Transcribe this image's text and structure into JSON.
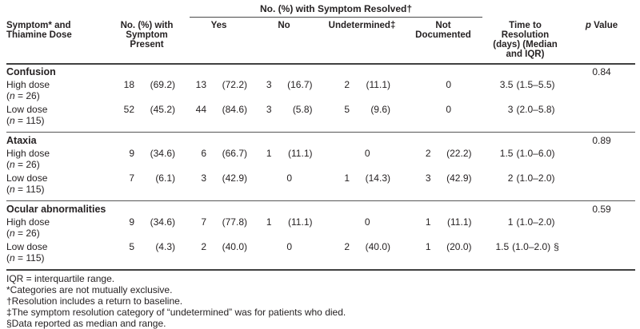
{
  "header": {
    "spanner": "No. (%) with Symptom Resolved†",
    "col_symptom": [
      "Symptom* and",
      "Thiamine Dose"
    ],
    "col_present": [
      "No. (%) with",
      "Symptom",
      "Present"
    ],
    "col_yes": "Yes",
    "col_no": "No",
    "col_undetermined": "Undetermined‡",
    "col_notdoc": [
      "Not",
      "Documented"
    ],
    "col_time": [
      "Time to",
      "Resolution",
      "(days) (Median",
      "and IQR)"
    ],
    "col_p_italic": "p",
    "col_p_rest": " Value"
  },
  "sections": [
    {
      "name": "Confusion",
      "p": "0.84",
      "rows": [
        {
          "dose": "High dose",
          "n_open": "(",
          "n_sym": "n",
          "n_rest": " = 26)",
          "present": {
            "n": "18",
            "pct": "(69.2)"
          },
          "yes": {
            "n": "13",
            "pct": "(72.2)"
          },
          "no": {
            "n": "3",
            "pct": "(16.7)"
          },
          "undetermined": {
            "n": "2",
            "pct": "(11.1)"
          },
          "notdoc": {
            "n": "0",
            "pct": ""
          },
          "time": {
            "n": "3.5",
            "range": "(1.5–5.5)",
            "suffix": ""
          }
        },
        {
          "dose": "Low dose",
          "n_open": "(",
          "n_sym": "n",
          "n_rest": " = 115)",
          "present": {
            "n": "52",
            "pct": "(45.2)"
          },
          "yes": {
            "n": "44",
            "pct": "(84.6)"
          },
          "no": {
            "n": "3",
            "pct": "(5.8)"
          },
          "undetermined": {
            "n": "5",
            "pct": "(9.6)"
          },
          "notdoc": {
            "n": "0",
            "pct": ""
          },
          "time": {
            "n": "3",
            "range": "(2.0–5.8)",
            "suffix": ""
          }
        }
      ]
    },
    {
      "name": "Ataxia",
      "p": "0.89",
      "rows": [
        {
          "dose": "High dose",
          "n_open": "(",
          "n_sym": "n",
          "n_rest": " = 26)",
          "present": {
            "n": "9",
            "pct": "(34.6)"
          },
          "yes": {
            "n": "6",
            "pct": "(66.7)"
          },
          "no": {
            "n": "1",
            "pct": "(11.1)"
          },
          "undetermined": {
            "n": "0",
            "pct": ""
          },
          "notdoc": {
            "n": "2",
            "pct": "(22.2)"
          },
          "time": {
            "n": "1.5",
            "range": "(1.0–6.0)",
            "suffix": ""
          }
        },
        {
          "dose": "Low dose",
          "n_open": "(",
          "n_sym": "n",
          "n_rest": " = 115)",
          "present": {
            "n": "7",
            "pct": "(6.1)"
          },
          "yes": {
            "n": "3",
            "pct": "(42.9)"
          },
          "no": {
            "n": "0",
            "pct": ""
          },
          "undetermined": {
            "n": "1",
            "pct": "(14.3)"
          },
          "notdoc": {
            "n": "3",
            "pct": "(42.9)"
          },
          "time": {
            "n": "2",
            "range": "(1.0–2.0)",
            "suffix": ""
          }
        }
      ]
    },
    {
      "name": "Ocular abnormalities",
      "p": "0.59",
      "rows": [
        {
          "dose": "High dose",
          "n_open": "(",
          "n_sym": "n",
          "n_rest": " = 26)",
          "present": {
            "n": "9",
            "pct": "(34.6)"
          },
          "yes": {
            "n": "7",
            "pct": "(77.8)"
          },
          "no": {
            "n": "1",
            "pct": "(11.1)"
          },
          "undetermined": {
            "n": "0",
            "pct": ""
          },
          "notdoc": {
            "n": "1",
            "pct": "(11.1)"
          },
          "time": {
            "n": "1",
            "range": "(1.0–2.0)",
            "suffix": ""
          }
        },
        {
          "dose": "Low dose",
          "n_open": "(",
          "n_sym": "n",
          "n_rest": " = 115)",
          "present": {
            "n": "5",
            "pct": "(4.3)"
          },
          "yes": {
            "n": "2",
            "pct": "(40.0)"
          },
          "no": {
            "n": "0",
            "pct": ""
          },
          "undetermined": {
            "n": "2",
            "pct": "(40.0)"
          },
          "notdoc": {
            "n": "1",
            "pct": "(20.0)"
          },
          "time": {
            "n": "1.5",
            "range": "(1.0–2.0)",
            "suffix": "§"
          }
        }
      ]
    }
  ],
  "footnotes": [
    "IQR = interquartile range.",
    "*Categories are not mutually exclusive.",
    "†Resolution includes a return to baseline.",
    "‡The symptom resolution category of “undetermined” was for patients who died.",
    "§Data reported as median and range."
  ]
}
